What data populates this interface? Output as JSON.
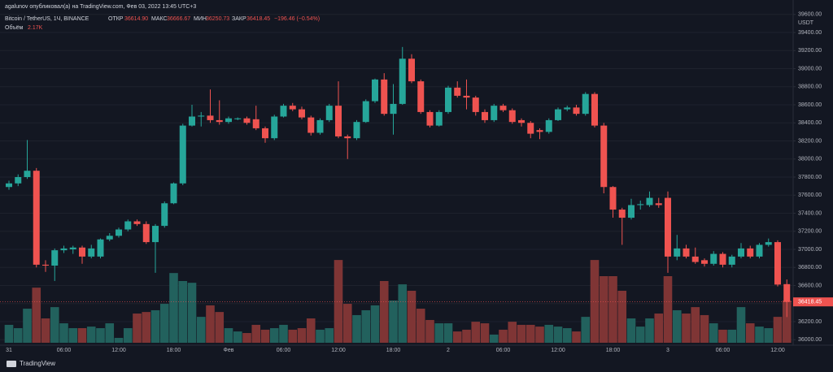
{
  "chart_data": {
    "type": "candlestick",
    "header": {
      "attribution": "agalunov опубликовал(а) на TradingView.com, Фев 03, 2022 13:45 UTC+3",
      "symbol": "Bitcoin / TetherUS, 1Ч, BINANCE",
      "open_label": "ОТКР",
      "open_value": "36614.90",
      "high_label": "МАКС",
      "high_value": "36666.67",
      "low_label": "МИН",
      "low_value": "36250.73",
      "close_label": "ЗАКР",
      "close_value": "36418.45",
      "change": "−196.46 (−0.54%)",
      "volume_label": "Объём",
      "volume_value": "2.17K"
    },
    "currency": "USDT",
    "brand": "TradingView",
    "last_price_label": "36418.45",
    "categories": [
      "31",
      null,
      null,
      null,
      null,
      null,
      "06:00",
      null,
      null,
      null,
      null,
      null,
      "12:00",
      null,
      null,
      null,
      null,
      null,
      "18:00",
      null,
      null,
      null,
      null,
      null,
      "Фев",
      null,
      null,
      null,
      null,
      null,
      "06:00",
      null,
      null,
      null,
      null,
      null,
      "12:00",
      null,
      null,
      null,
      null,
      null,
      "18:00",
      null,
      null,
      null,
      null,
      null,
      "2",
      null,
      null,
      null,
      null,
      null,
      "06:00",
      null,
      null,
      null,
      null,
      null,
      "12:00",
      null,
      null,
      null,
      null,
      null,
      "18:00",
      null,
      null,
      null,
      null,
      null,
      "3",
      null,
      null,
      null,
      null,
      null,
      "06:00",
      null,
      null,
      null,
      null,
      null,
      "12:00",
      null
    ],
    "open": [
      37690,
      37730,
      37800,
      37870,
      36830,
      36820,
      36990,
      37000,
      37020,
      36920,
      36920,
      37110,
      37150,
      37220,
      37310,
      37280,
      37080,
      37260,
      37510,
      37730,
      38370,
      38470,
      38480,
      38430,
      38410,
      38440,
      38450,
      38440,
      38340,
      38230,
      38470,
      38590,
      38550,
      38460,
      38290,
      38430,
      38590,
      38250,
      38230,
      38410,
      38640,
      38880,
      38500,
      38610,
      39110,
      38860,
      38520,
      38370,
      38520,
      38790,
      38700,
      38680,
      38520,
      38430,
      38590,
      38540,
      38430,
      38400,
      38320,
      38300,
      38430,
      38550,
      38570,
      38500,
      38720,
      38370,
      37690,
      37440,
      37350,
      37490,
      37490,
      37510,
      37570,
      36920,
      37010,
      36920,
      36880,
      36840,
      36950,
      36830,
      36920,
      37010,
      36920,
      37050,
      37080,
      36614.9
    ],
    "high": [
      37760,
      37830,
      38210,
      37900,
      36880,
      37010,
      37040,
      37040,
      37040,
      37050,
      37120,
      37180,
      37240,
      37330,
      37330,
      37310,
      37280,
      37530,
      37740,
      38390,
      38600,
      38520,
      38770,
      38650,
      38470,
      38460,
      38470,
      38590,
      38360,
      38490,
      38610,
      38620,
      38580,
      38480,
      38450,
      38610,
      38860,
      38270,
      38430,
      38660,
      38890,
      38950,
      38830,
      39240,
      39160,
      38880,
      38540,
      38540,
      38810,
      38860,
      38880,
      38700,
      38550,
      38610,
      38610,
      38560,
      38450,
      38420,
      38340,
      38450,
      38570,
      38590,
      38600,
      38740,
      38740,
      38400,
      37700,
      37460,
      37560,
      37540,
      37640,
      37570,
      37640,
      37160,
      37050,
      37020,
      36900,
      36980,
      36970,
      36940,
      37070,
      37040,
      37070,
      37120,
      37100,
      36666.67
    ],
    "low": [
      37660,
      37700,
      37780,
      36800,
      36750,
      36650,
      36960,
      36950,
      36840,
      36900,
      36900,
      37090,
      37130,
      37200,
      37260,
      37060,
      36740,
      37240,
      37500,
      37710,
      38360,
      38360,
      38400,
      38380,
      38390,
      38430,
      38380,
      38320,
      38180,
      38210,
      38460,
      38530,
      38440,
      38260,
      38270,
      38410,
      38230,
      38000,
      38210,
      38400,
      38620,
      38480,
      38270,
      38600,
      38840,
      38500,
      38350,
      38360,
      38500,
      38680,
      38550,
      38480,
      38400,
      38410,
      38520,
      38390,
      38360,
      38230,
      38220,
      38280,
      38420,
      38530,
      38480,
      38480,
      38350,
      37620,
      37350,
      37050,
      37330,
      37440,
      37470,
      37460,
      36740,
      36880,
      36900,
      36840,
      36810,
      36820,
      36800,
      36800,
      36900,
      36900,
      36900,
      37030,
      36590,
      36250.73
    ],
    "close": [
      37730,
      37800,
      37870,
      36830,
      36820,
      36990,
      37010,
      37020,
      36920,
      37010,
      37110,
      37150,
      37220,
      37310,
      37280,
      37080,
      37260,
      37510,
      37730,
      38370,
      38470,
      38480,
      38430,
      38410,
      38450,
      38450,
      38400,
      38340,
      38230,
      38470,
      38590,
      38550,
      38460,
      38290,
      38430,
      38590,
      38250,
      38230,
      38410,
      38640,
      38880,
      38500,
      38610,
      39110,
      38860,
      38520,
      38370,
      38520,
      38790,
      38700,
      38680,
      38520,
      38430,
      38590,
      38540,
      38410,
      38400,
      38280,
      38300,
      38430,
      38550,
      38570,
      38500,
      38720,
      38370,
      37690,
      37440,
      37350,
      37490,
      37500,
      37570,
      37490,
      36920,
      37010,
      36920,
      36860,
      36840,
      36950,
      36830,
      36920,
      37010,
      36920,
      37050,
      37080,
      36610,
      36418.45
    ],
    "volume": [
      0.92,
      0.75,
      1.75,
      2.83,
      1.25,
      1.83,
      1.0,
      0.75,
      0.75,
      0.83,
      0.75,
      1.0,
      0.25,
      0.75,
      1.5,
      1.58,
      1.67,
      2.0,
      3.58,
      3.17,
      3.08,
      1.33,
      1.92,
      1.58,
      0.75,
      0.58,
      0.5,
      0.92,
      0.67,
      0.75,
      0.92,
      0.67,
      0.75,
      1.25,
      0.67,
      0.75,
      4.25,
      2.0,
      1.42,
      1.67,
      1.92,
      3.17,
      2.17,
      3.0,
      2.67,
      1.75,
      1.17,
      1.0,
      1.0,
      0.58,
      0.67,
      1.08,
      1.0,
      0.42,
      0.67,
      1.08,
      0.92,
      0.92,
      0.83,
      0.92,
      0.83,
      0.75,
      0.58,
      1.33,
      4.25,
      3.42,
      3.42,
      2.67,
      1.25,
      0.83,
      1.25,
      1.5,
      3.42,
      1.67,
      1.5,
      1.83,
      1.42,
      1.0,
      0.67,
      0.67,
      1.83,
      1.0,
      0.83,
      0.75,
      1.33,
      2.17
    ],
    "up_color": "#26a69a",
    "down_color": "#ef5350",
    "volume_up_color": "#22615d",
    "volume_down_color": "#7f3535",
    "ylim": [
      35966,
      39760
    ],
    "volume_ylim": [
      0,
      17.6
    ],
    "yticks": [
      {
        "value": 36000,
        "label": "36000.00"
      },
      {
        "value": 36200,
        "label": "36200.00"
      },
      {
        "value": 36400,
        "label": "36400.00"
      },
      {
        "value": 36600,
        "label": "36600.00"
      },
      {
        "value": 36800,
        "label": "36800.00"
      },
      {
        "value": 37000,
        "label": "37000.00"
      },
      {
        "value": 37200,
        "label": "37200.00"
      },
      {
        "value": 37400,
        "label": "37400.00"
      },
      {
        "value": 37600,
        "label": "37600.00"
      },
      {
        "value": 37800,
        "label": "37800.00"
      },
      {
        "value": 38000,
        "label": "38000.00"
      },
      {
        "value": 38200,
        "label": "38200.00"
      },
      {
        "value": 38400,
        "label": "38400.00"
      },
      {
        "value": 38600,
        "label": "38600.00"
      },
      {
        "value": 38800,
        "label": "38800.00"
      },
      {
        "value": 39000,
        "label": "39000.00"
      },
      {
        "value": 39200,
        "label": "39200.00"
      },
      {
        "value": 39400,
        "label": "39400.00"
      },
      {
        "value": 39600,
        "label": "39600.00"
      }
    ],
    "grid": true
  }
}
